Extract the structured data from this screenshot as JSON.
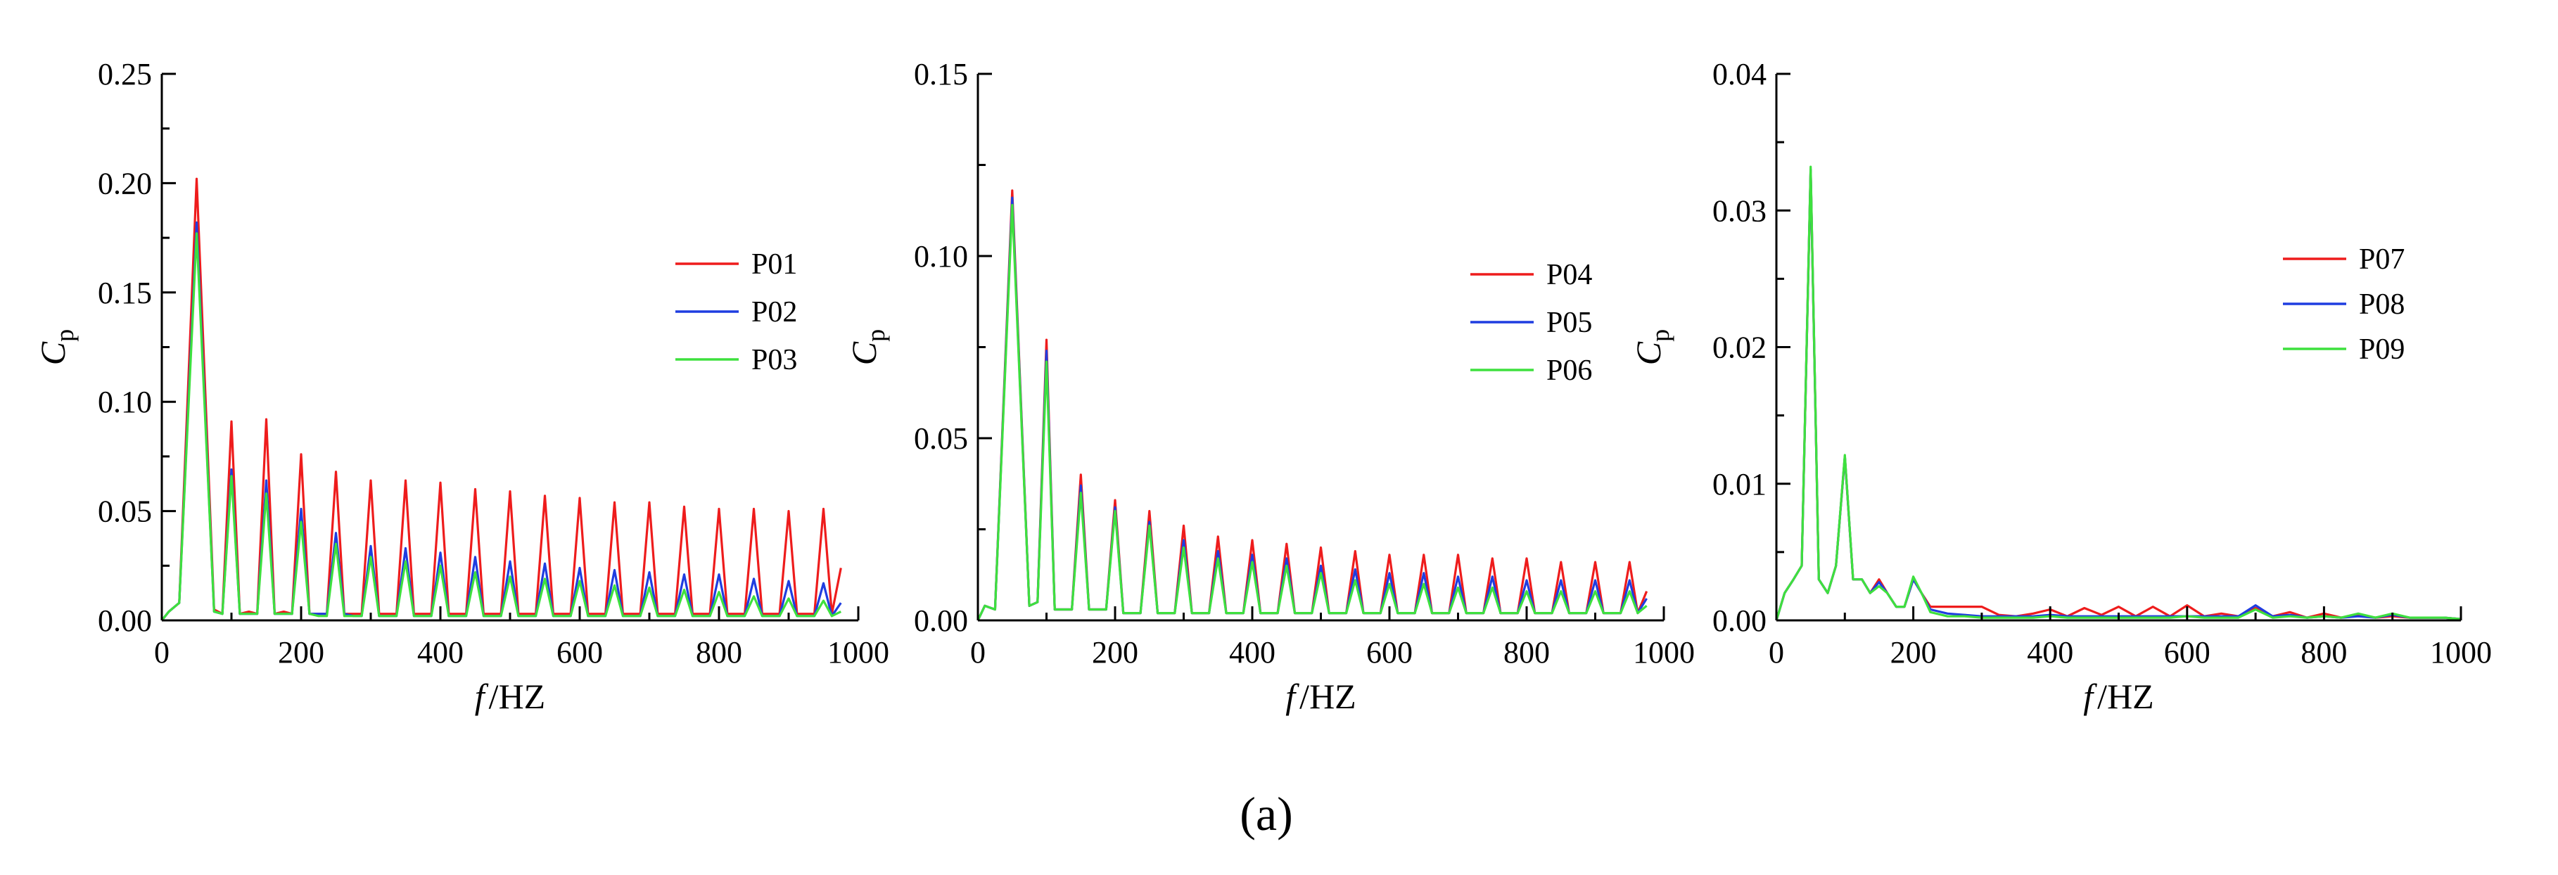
{
  "figure": {
    "caption": "(a)"
  },
  "chart_data": [
    {
      "type": "line",
      "xlabel_var": "f",
      "xlabel_unit": "/HZ",
      "ylabel_var": "C",
      "ylabel_sub": "p",
      "xlim": [
        0,
        1000
      ],
      "ylim": [
        0,
        0.25
      ],
      "xticks": [
        0,
        200,
        400,
        600,
        800,
        1000
      ],
      "yticks": [
        0,
        0.05,
        0.1,
        0.15,
        0.2,
        0.25
      ],
      "ytick_labels": [
        "0.00",
        "0.05",
        "0.10",
        "0.15",
        "0.20",
        "0.25"
      ],
      "legend_position": "right-center",
      "x": [
        0,
        10,
        25,
        50,
        75,
        87,
        100,
        112,
        125,
        137,
        150,
        162,
        175,
        187,
        200,
        212,
        225,
        237,
        250,
        262,
        275,
        287,
        300,
        312,
        325,
        337,
        350,
        362,
        375,
        387,
        400,
        412,
        425,
        437,
        450,
        462,
        475,
        487,
        500,
        512,
        525,
        537,
        550,
        562,
        575,
        587,
        600,
        612,
        625,
        637,
        650,
        662,
        675,
        687,
        700,
        712,
        725,
        737,
        750,
        762,
        775,
        787,
        800,
        812,
        825,
        837,
        850,
        862,
        875,
        887,
        900,
        912,
        925,
        937,
        950,
        962,
        975
      ],
      "series": [
        {
          "name": "P01",
          "color": "#ee1c1c",
          "values": [
            0,
            0.004,
            0.008,
            0.202,
            0.005,
            0.003,
            0.091,
            0.003,
            0.004,
            0.003,
            0.092,
            0.003,
            0.004,
            0.003,
            0.076,
            0.003,
            0.003,
            0.003,
            0.068,
            0.003,
            0.003,
            0.003,
            0.064,
            0.003,
            0.003,
            0.003,
            0.064,
            0.003,
            0.003,
            0.003,
            0.063,
            0.003,
            0.003,
            0.003,
            0.06,
            0.003,
            0.003,
            0.003,
            0.059,
            0.003,
            0.003,
            0.003,
            0.057,
            0.003,
            0.003,
            0.003,
            0.056,
            0.003,
            0.003,
            0.003,
            0.054,
            0.003,
            0.003,
            0.003,
            0.054,
            0.003,
            0.003,
            0.003,
            0.052,
            0.003,
            0.003,
            0.003,
            0.051,
            0.003,
            0.003,
            0.003,
            0.051,
            0.003,
            0.003,
            0.003,
            0.05,
            0.003,
            0.003,
            0.003,
            0.051,
            0.003,
            0.024
          ]
        },
        {
          "name": "P02",
          "color": "#1f3de0",
          "values": [
            0,
            0.004,
            0.008,
            0.182,
            0.004,
            0.003,
            0.069,
            0.003,
            0.003,
            0.003,
            0.064,
            0.003,
            0.003,
            0.003,
            0.051,
            0.003,
            0.003,
            0.003,
            0.04,
            0.003,
            0.002,
            0.002,
            0.034,
            0.002,
            0.002,
            0.002,
            0.033,
            0.002,
            0.002,
            0.002,
            0.031,
            0.002,
            0.002,
            0.002,
            0.029,
            0.002,
            0.002,
            0.002,
            0.027,
            0.002,
            0.002,
            0.002,
            0.026,
            0.002,
            0.002,
            0.002,
            0.024,
            0.002,
            0.002,
            0.002,
            0.023,
            0.002,
            0.002,
            0.002,
            0.022,
            0.002,
            0.002,
            0.002,
            0.021,
            0.002,
            0.002,
            0.002,
            0.021,
            0.002,
            0.002,
            0.002,
            0.019,
            0.002,
            0.002,
            0.002,
            0.018,
            0.002,
            0.002,
            0.002,
            0.017,
            0.002,
            0.008
          ]
        },
        {
          "name": "P03",
          "color": "#3ee03e",
          "values": [
            0,
            0.004,
            0.008,
            0.177,
            0.004,
            0.003,
            0.066,
            0.003,
            0.003,
            0.003,
            0.058,
            0.003,
            0.003,
            0.003,
            0.045,
            0.003,
            0.002,
            0.002,
            0.035,
            0.002,
            0.002,
            0.002,
            0.029,
            0.002,
            0.002,
            0.002,
            0.027,
            0.002,
            0.002,
            0.002,
            0.025,
            0.002,
            0.002,
            0.002,
            0.022,
            0.002,
            0.002,
            0.002,
            0.02,
            0.002,
            0.002,
            0.002,
            0.019,
            0.002,
            0.002,
            0.002,
            0.018,
            0.002,
            0.002,
            0.002,
            0.016,
            0.002,
            0.002,
            0.002,
            0.015,
            0.002,
            0.002,
            0.002,
            0.014,
            0.002,
            0.002,
            0.002,
            0.013,
            0.002,
            0.002,
            0.002,
            0.011,
            0.002,
            0.002,
            0.002,
            0.01,
            0.002,
            0.002,
            0.002,
            0.009,
            0.002,
            0.004
          ]
        }
      ]
    },
    {
      "type": "line",
      "xlabel_var": "f",
      "xlabel_unit": "/HZ",
      "ylabel_var": "C",
      "ylabel_sub": "p",
      "xlim": [
        0,
        1000
      ],
      "ylim": [
        0,
        0.15
      ],
      "xticks": [
        0,
        200,
        400,
        600,
        800,
        1000
      ],
      "yticks": [
        0,
        0.05,
        0.1,
        0.15
      ],
      "ytick_labels": [
        "0.00",
        "0.05",
        "0.10",
        "0.15"
      ],
      "legend_position": "right-center",
      "x": [
        0,
        10,
        25,
        50,
        75,
        87,
        100,
        112,
        125,
        137,
        150,
        162,
        175,
        187,
        200,
        212,
        225,
        237,
        250,
        262,
        275,
        287,
        300,
        312,
        325,
        337,
        350,
        362,
        375,
        387,
        400,
        412,
        425,
        437,
        450,
        462,
        475,
        487,
        500,
        512,
        525,
        537,
        550,
        562,
        575,
        587,
        600,
        612,
        625,
        637,
        650,
        662,
        675,
        687,
        700,
        712,
        725,
        737,
        750,
        762,
        775,
        787,
        800,
        812,
        825,
        837,
        850,
        862,
        875,
        887,
        900,
        912,
        925,
        937,
        950,
        962,
        975
      ],
      "series": [
        {
          "name": "P04",
          "color": "#ee1c1c",
          "values": [
            0,
            0.004,
            0.003,
            0.118,
            0.004,
            0.005,
            0.077,
            0.003,
            0.003,
            0.003,
            0.04,
            0.003,
            0.003,
            0.003,
            0.033,
            0.002,
            0.002,
            0.002,
            0.03,
            0.002,
            0.002,
            0.002,
            0.026,
            0.002,
            0.002,
            0.002,
            0.023,
            0.002,
            0.002,
            0.002,
            0.022,
            0.002,
            0.002,
            0.002,
            0.021,
            0.002,
            0.002,
            0.002,
            0.02,
            0.002,
            0.002,
            0.002,
            0.019,
            0.002,
            0.002,
            0.002,
            0.018,
            0.002,
            0.002,
            0.002,
            0.018,
            0.002,
            0.002,
            0.002,
            0.018,
            0.002,
            0.002,
            0.002,
            0.017,
            0.002,
            0.002,
            0.002,
            0.017,
            0.002,
            0.002,
            0.002,
            0.016,
            0.002,
            0.002,
            0.002,
            0.016,
            0.002,
            0.002,
            0.002,
            0.016,
            0.002,
            0.008
          ]
        },
        {
          "name": "P05",
          "color": "#1f3de0",
          "values": [
            0,
            0.004,
            0.003,
            0.116,
            0.004,
            0.005,
            0.074,
            0.003,
            0.003,
            0.003,
            0.037,
            0.003,
            0.003,
            0.003,
            0.031,
            0.002,
            0.002,
            0.002,
            0.027,
            0.002,
            0.002,
            0.002,
            0.022,
            0.002,
            0.002,
            0.002,
            0.019,
            0.002,
            0.002,
            0.002,
            0.018,
            0.002,
            0.002,
            0.002,
            0.017,
            0.002,
            0.002,
            0.002,
            0.015,
            0.002,
            0.002,
            0.002,
            0.014,
            0.002,
            0.002,
            0.002,
            0.013,
            0.002,
            0.002,
            0.002,
            0.013,
            0.002,
            0.002,
            0.002,
            0.012,
            0.002,
            0.002,
            0.002,
            0.012,
            0.002,
            0.002,
            0.002,
            0.011,
            0.002,
            0.002,
            0.002,
            0.011,
            0.002,
            0.002,
            0.002,
            0.011,
            0.002,
            0.002,
            0.002,
            0.011,
            0.002,
            0.006
          ]
        },
        {
          "name": "P06",
          "color": "#3ee03e",
          "values": [
            0,
            0.004,
            0.003,
            0.114,
            0.004,
            0.005,
            0.071,
            0.003,
            0.003,
            0.003,
            0.035,
            0.003,
            0.003,
            0.003,
            0.03,
            0.002,
            0.002,
            0.002,
            0.026,
            0.002,
            0.002,
            0.002,
            0.02,
            0.002,
            0.002,
            0.002,
            0.017,
            0.002,
            0.002,
            0.002,
            0.016,
            0.002,
            0.002,
            0.002,
            0.015,
            0.002,
            0.002,
            0.002,
            0.013,
            0.002,
            0.002,
            0.002,
            0.011,
            0.002,
            0.002,
            0.002,
            0.01,
            0.002,
            0.002,
            0.002,
            0.01,
            0.002,
            0.002,
            0.002,
            0.009,
            0.002,
            0.002,
            0.002,
            0.009,
            0.002,
            0.002,
            0.002,
            0.008,
            0.002,
            0.002,
            0.002,
            0.008,
            0.002,
            0.002,
            0.002,
            0.008,
            0.002,
            0.002,
            0.002,
            0.008,
            0.002,
            0.004
          ]
        }
      ]
    },
    {
      "type": "line",
      "xlabel_var": "f",
      "xlabel_unit": "/HZ",
      "ylabel_var": "C",
      "ylabel_sub": "p",
      "xlim": [
        0,
        1000
      ],
      "ylim": [
        0,
        0.04
      ],
      "xticks": [
        0,
        200,
        400,
        600,
        800,
        1000
      ],
      "yticks": [
        0,
        0.01,
        0.02,
        0.03,
        0.04
      ],
      "ytick_labels": [
        "0.00",
        "0.01",
        "0.02",
        "0.03",
        "0.04"
      ],
      "legend_position": "top-right",
      "x": [
        0,
        12,
        25,
        37,
        50,
        62,
        75,
        87,
        100,
        112,
        125,
        137,
        150,
        162,
        175,
        187,
        200,
        212,
        225,
        250,
        275,
        300,
        325,
        350,
        375,
        400,
        425,
        450,
        475,
        500,
        525,
        550,
        575,
        600,
        625,
        650,
        675,
        700,
        725,
        750,
        775,
        800,
        825,
        850,
        875,
        900,
        925,
        950,
        975,
        1000
      ],
      "series": [
        {
          "name": "P07",
          "color": "#ee1c1c",
          "values": [
            0,
            0.002,
            0.003,
            0.004,
            0.033,
            0.003,
            0.002,
            0.004,
            0.012,
            0.003,
            0.003,
            0.002,
            0.003,
            0.002,
            0.001,
            0.001,
            0.003,
            0.002,
            0.001,
            0.001,
            0.001,
            0.001,
            0.0004,
            0.0003,
            0.0005,
            0.0008,
            0.0003,
            0.0009,
            0.0004,
            0.001,
            0.0003,
            0.001,
            0.0003,
            0.0011,
            0.0003,
            0.0005,
            0.0003,
            0.0009,
            0.0003,
            0.0006,
            0.0002,
            0.0005,
            0.0002,
            0.0004,
            0.0002,
            0.0003,
            0.0002,
            0.0002,
            0.0002,
            0.0001
          ]
        },
        {
          "name": "P08",
          "color": "#1f3de0",
          "values": [
            0,
            0.002,
            0.003,
            0.004,
            0.033,
            0.003,
            0.002,
            0.004,
            0.012,
            0.003,
            0.003,
            0.002,
            0.0028,
            0.002,
            0.001,
            0.001,
            0.003,
            0.002,
            0.0008,
            0.0005,
            0.0004,
            0.0003,
            0.0003,
            0.0003,
            0.0003,
            0.0004,
            0.0003,
            0.0003,
            0.0003,
            0.0003,
            0.0003,
            0.0003,
            0.0003,
            0.0003,
            0.0003,
            0.0003,
            0.0003,
            0.0011,
            0.0003,
            0.0004,
            0.0002,
            0.0003,
            0.0002,
            0.0003,
            0.0002,
            0.0004,
            0.0002,
            0.0002,
            0.0002,
            0.0001
          ]
        },
        {
          "name": "P09",
          "color": "#3ee03e",
          "values": [
            0,
            0.002,
            0.003,
            0.004,
            0.0332,
            0.003,
            0.002,
            0.004,
            0.0121,
            0.003,
            0.003,
            0.002,
            0.0025,
            0.002,
            0.001,
            0.001,
            0.0032,
            0.002,
            0.0006,
            0.0003,
            0.0003,
            0.0002,
            0.0002,
            0.0002,
            0.0002,
            0.0003,
            0.0002,
            0.0002,
            0.0002,
            0.0002,
            0.0002,
            0.0002,
            0.0002,
            0.0003,
            0.0002,
            0.0002,
            0.0002,
            0.0008,
            0.0002,
            0.0003,
            0.0002,
            0.0003,
            0.0002,
            0.0005,
            0.0002,
            0.0005,
            0.0002,
            0.0002,
            0.0002,
            0.0001
          ]
        }
      ]
    }
  ]
}
